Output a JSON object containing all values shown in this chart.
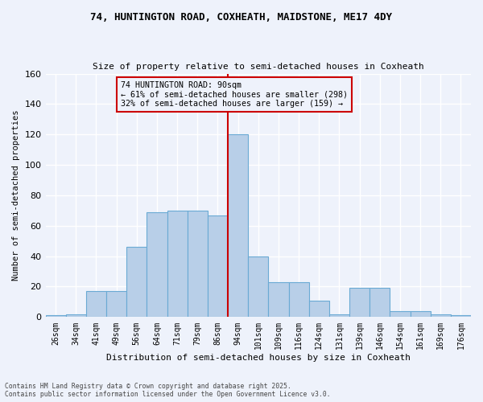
{
  "title_line1": "74, HUNTINGTON ROAD, COXHEATH, MAIDSTONE, ME17 4DY",
  "title_line2": "Size of property relative to semi-detached houses in Coxheath",
  "xlabel": "Distribution of semi-detached houses by size in Coxheath",
  "ylabel": "Number of semi-detached properties",
  "footer_line1": "Contains HM Land Registry data © Crown copyright and database right 2025.",
  "footer_line2": "Contains public sector information licensed under the Open Government Licence v3.0.",
  "categories": [
    "26sqm",
    "34sqm",
    "41sqm",
    "49sqm",
    "56sqm",
    "64sqm",
    "71sqm",
    "79sqm",
    "86sqm",
    "94sqm",
    "101sqm",
    "109sqm",
    "116sqm",
    "124sqm",
    "131sqm",
    "139sqm",
    "146sqm",
    "154sqm",
    "161sqm",
    "169sqm",
    "176sqm"
  ],
  "values": [
    1,
    2,
    17,
    17,
    46,
    69,
    70,
    70,
    67,
    120,
    40,
    23,
    23,
    11,
    2,
    19,
    19,
    4,
    4,
    2,
    1
  ],
  "bar_color": "#b8cfe8",
  "bar_edge_color": "#6aaad4",
  "vline_color": "#cc0000",
  "annotation_title": "74 HUNTINGTON ROAD: 90sqm",
  "annotation_line1": "← 61% of semi-detached houses are smaller (298)",
  "annotation_line2": "32% of semi-detached houses are larger (159) →",
  "annotation_box_color": "#cc0000",
  "ylim": [
    0,
    160
  ],
  "yticks": [
    0,
    20,
    40,
    60,
    80,
    100,
    120,
    140,
    160
  ],
  "background_color": "#eef2fb",
  "grid_color": "#ffffff"
}
